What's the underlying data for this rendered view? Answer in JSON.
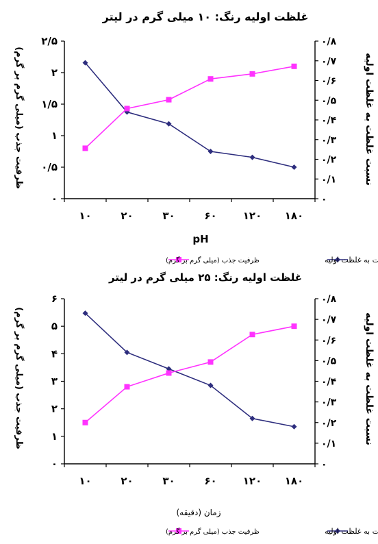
{
  "chart_data": [
    {
      "type": "line",
      "title": "غلظت اولیه رنگ: ۱۰ میلی گرم در لیتر",
      "xlabel": "pH",
      "y_left_label": "ظرفیت جذب (میلی گرم بر گرم)",
      "y_right_label": "نسبت غلظت به غلظت اولیه",
      "categories": [
        "۱۰",
        "۲۰",
        "۳۰",
        "۶۰",
        "۱۲۰",
        "۱۸۰"
      ],
      "y_left_ticks": [
        "۰",
        "۰/۵",
        "۱",
        "۱/۵",
        "۲",
        "۲/۵"
      ],
      "y_right_ticks": [
        "۰",
        "۰/۱",
        "۰/۲",
        "۰/۳",
        "۰/۴",
        "۰/۵",
        "۰/۶",
        "۰/۷",
        "۰/۸"
      ],
      "ylim_left": [
        0,
        2.5
      ],
      "ylim_right": [
        0,
        0.8
      ],
      "series": [
        {
          "name": "نسبت غلظت به غلظت اولیه",
          "axis": "right",
          "color": "#2e2e7e",
          "marker": "diamond",
          "values": [
            0.69,
            0.44,
            0.38,
            0.24,
            0.21,
            0.16
          ]
        },
        {
          "name": "ظرفیت جذب (میلی گرم بر گرم)",
          "axis": "left",
          "color": "#ff33ff",
          "marker": "square",
          "values": [
            0.8,
            1.43,
            1.57,
            1.9,
            1.98,
            2.1
          ]
        }
      ],
      "legend_position": "bottom",
      "grid": false
    },
    {
      "type": "line",
      "title": "غلظت اولیه رنگ: ۲۵ میلی گرم در لیتر",
      "xlabel": "زمان (دقیقه)",
      "y_left_label": "ظرفیت جذب (میلی گرم بر گرم)",
      "y_right_label": "نسبت غلظت به غلظت اولیه",
      "categories": [
        "۱۰",
        "۲۰",
        "۳۰",
        "۶۰",
        "۱۲۰",
        "۱۸۰"
      ],
      "y_left_ticks": [
        "۰",
        "۱",
        "۲",
        "۳",
        "۴",
        "۵",
        "۶"
      ],
      "y_right_ticks": [
        "۰",
        "۰/۱",
        "۰/۲",
        "۰/۳",
        "۰/۴",
        "۰/۵",
        "۰/۶",
        "۰/۷",
        "۰/۸"
      ],
      "ylim_left": [
        0,
        6
      ],
      "ylim_right": [
        0,
        0.8
      ],
      "series": [
        {
          "name": "نسبت غلظت به غلظت اولیه",
          "axis": "right",
          "color": "#2e2e7e",
          "marker": "diamond",
          "values": [
            0.73,
            0.54,
            0.46,
            0.38,
            0.22,
            0.18
          ]
        },
        {
          "name": "ظرفیت جذب (میلی گرم بر گرم)",
          "axis": "left",
          "color": "#ff33ff",
          "marker": "square",
          "values": [
            1.5,
            2.8,
            3.3,
            3.7,
            4.7,
            5.0
          ]
        }
      ],
      "legend_position": "bottom",
      "grid": false
    }
  ]
}
